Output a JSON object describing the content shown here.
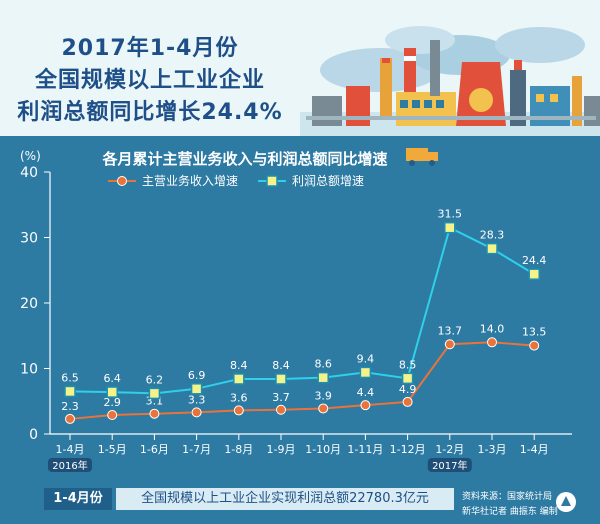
{
  "header": {
    "title_line1": "2017年1-4月份",
    "title_line2": "全国规模以上工业企业",
    "title_line3": "利润总额同比增长24.4%"
  },
  "chart_data": {
    "type": "line",
    "title": "各月累计主营业务收入与利润总额同比增速",
    "ylabel": "(%)",
    "ylim": [
      0,
      40
    ],
    "yticks": [
      "0",
      "10",
      "20",
      "30",
      "40"
    ],
    "categories": [
      "1-4月",
      "1-5月",
      "1-6月",
      "1-7月",
      "1-8月",
      "1-9月",
      "1-10月",
      "1-11月",
      "1-12月",
      "1-2月",
      "1-3月",
      "1-4月"
    ],
    "year_labels": [
      "2016年",
      "2017年"
    ],
    "legend_position": "top",
    "grid": false,
    "series": [
      {
        "name": "主营业务收入增速",
        "color": "#e8743b",
        "values": [
          2.3,
          2.9,
          3.1,
          3.3,
          3.6,
          3.7,
          3.9,
          4.4,
          4.9,
          13.7,
          14.0,
          13.5
        ],
        "labels": [
          "2.3",
          "2.9",
          "3.1",
          "3.3",
          "3.6",
          "3.7",
          "3.9",
          "4.4",
          "4.9",
          "13.7",
          "14.0",
          "13.5"
        ]
      },
      {
        "name": "利润总额增速",
        "color": "#2fd0ea",
        "values": [
          6.5,
          6.4,
          6.2,
          6.9,
          8.4,
          8.4,
          8.6,
          9.4,
          8.5,
          31.5,
          28.3,
          24.4
        ],
        "labels": [
          "6.5",
          "6.4",
          "6.2",
          "6.9",
          "8.4",
          "8.4",
          "8.6",
          "9.4",
          "8.5",
          "31.5",
          "28.3",
          "24.4"
        ]
      }
    ]
  },
  "footer": {
    "label": "1-4月份",
    "summary": "全国规模以上工业企业实现利润总额22780.3亿元",
    "source": "资料来源：国家统计局",
    "credit": "新华社记者 曲振东 编制"
  }
}
